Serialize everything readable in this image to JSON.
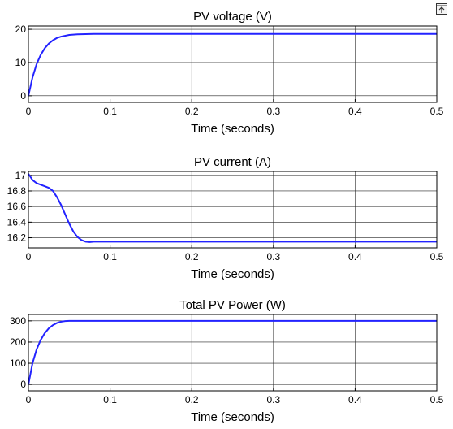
{
  "chart_data": [
    {
      "type": "line",
      "title": "PV voltage (V)",
      "xlabel": "Time (seconds)",
      "ylabel": "",
      "xlim": [
        0,
        0.5
      ],
      "ylim": [
        -2,
        21
      ],
      "xticks": [
        0,
        0.1,
        0.2,
        0.3,
        0.4,
        0.5
      ],
      "xtick_labels": [
        "0",
        "0.1",
        "0.2",
        "0.3",
        "0.4",
        "0.5"
      ],
      "yticks": [
        0,
        10,
        20
      ],
      "ytick_labels": [
        "0",
        "10",
        "20"
      ],
      "grid": true,
      "series": [
        {
          "color": "#2323ff",
          "x": [
            0,
            0.005,
            0.01,
            0.015,
            0.02,
            0.025,
            0.03,
            0.035,
            0.04,
            0.05,
            0.06,
            0.07,
            0.08,
            0.1,
            0.2,
            0.3,
            0.4,
            0.5
          ],
          "y": [
            0,
            5.5,
            9.5,
            12.3,
            14.3,
            15.7,
            16.7,
            17.4,
            17.8,
            18.3,
            18.5,
            18.55,
            18.6,
            18.6,
            18.6,
            18.6,
            18.6,
            18.6
          ]
        }
      ]
    },
    {
      "type": "line",
      "title": "PV current (A)",
      "xlabel": "Time (seconds)",
      "ylabel": "",
      "xlim": [
        0,
        0.5
      ],
      "ylim": [
        16.07,
        17.05
      ],
      "xticks": [
        0,
        0.1,
        0.2,
        0.3,
        0.4,
        0.5
      ],
      "xtick_labels": [
        "0",
        "0.1",
        "0.2",
        "0.3",
        "0.4",
        "0.5"
      ],
      "yticks": [
        16.2,
        16.4,
        16.6,
        16.8,
        17
      ],
      "ytick_labels": [
        "16.2",
        "16.4",
        "16.6",
        "16.8",
        "17"
      ],
      "grid": true,
      "series": [
        {
          "color": "#2323ff",
          "x": [
            0,
            0.005,
            0.01,
            0.015,
            0.02,
            0.025,
            0.03,
            0.035,
            0.04,
            0.045,
            0.05,
            0.055,
            0.06,
            0.065,
            0.07,
            0.075,
            0.08,
            0.1,
            0.2,
            0.3,
            0.4,
            0.5
          ],
          "y": [
            17.02,
            16.94,
            16.9,
            16.88,
            16.86,
            16.84,
            16.8,
            16.72,
            16.62,
            16.5,
            16.38,
            16.28,
            16.21,
            16.17,
            16.15,
            16.145,
            16.15,
            16.15,
            16.15,
            16.15,
            16.15,
            16.15
          ]
        }
      ]
    },
    {
      "type": "line",
      "title": "Total PV Power (W)",
      "xlabel": "Time (seconds)",
      "ylabel": "",
      "xlim": [
        0,
        0.5
      ],
      "ylim": [
        -30,
        330
      ],
      "xticks": [
        0,
        0.1,
        0.2,
        0.3,
        0.4,
        0.5
      ],
      "xtick_labels": [
        "0",
        "0.1",
        "0.2",
        "0.3",
        "0.4",
        "0.5"
      ],
      "yticks": [
        0,
        100,
        200,
        300
      ],
      "ytick_labels": [
        "0",
        "100",
        "200",
        "300"
      ],
      "grid": true,
      "series": [
        {
          "color": "#2323ff",
          "x": [
            0,
            0.005,
            0.01,
            0.015,
            0.02,
            0.025,
            0.03,
            0.035,
            0.04,
            0.045,
            0.05,
            0.06,
            0.07,
            0.1,
            0.2,
            0.3,
            0.4,
            0.5
          ],
          "y": [
            0,
            100,
            165,
            210,
            242,
            265,
            280,
            290,
            296,
            299,
            300,
            300,
            300,
            300,
            300,
            300,
            300,
            300
          ]
        }
      ]
    }
  ],
  "toolbar": {
    "icon": "dock-icon"
  }
}
